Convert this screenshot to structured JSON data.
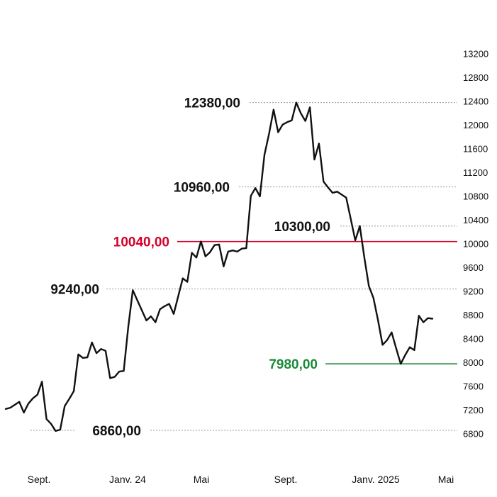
{
  "chart_data": {
    "type": "line",
    "title": "",
    "xlabel": "",
    "ylabel": "",
    "x_tick_labels": [
      "Sept.",
      "Janv. 24",
      "Mai",
      "Sept.",
      "Janv. 2025",
      "Mai"
    ],
    "y_ticks": [
      6800,
      7200,
      7600,
      8000,
      8400,
      8800,
      9200,
      9600,
      10000,
      10400,
      10800,
      11200,
      11600,
      12000,
      12400,
      12800,
      13200
    ],
    "ylim": [
      6800,
      13200
    ],
    "y_axis_side": "right",
    "grid": false,
    "series": [
      {
        "color": "#111111",
        "values": [
          7220,
          7240,
          7290,
          7340,
          7160,
          7310,
          7400,
          7460,
          7680,
          7050,
          6970,
          6850,
          6870,
          7270,
          7390,
          7520,
          8140,
          8080,
          8090,
          8340,
          8160,
          8230,
          8200,
          7740,
          7760,
          7850,
          7860,
          8600,
          9220,
          9050,
          8880,
          8710,
          8780,
          8680,
          8900,
          8950,
          8990,
          8820,
          9120,
          9420,
          9360,
          9850,
          9770,
          10040,
          9790,
          9860,
          9980,
          9990,
          9620,
          9870,
          9890,
          9870,
          9920,
          9930,
          10810,
          10940,
          10800,
          11500,
          11850,
          12260,
          11880,
          12010,
          12050,
          12080,
          12380,
          12200,
          12070,
          12300,
          11420,
          11690,
          11050,
          10950,
          10860,
          10880,
          10830,
          10780,
          10420,
          10060,
          10300,
          9770,
          9290,
          9090,
          8720,
          8300,
          8380,
          8510,
          8240,
          7980,
          8130,
          8260,
          8210,
          8790,
          8680,
          8750,
          8740
        ]
      }
    ],
    "annotations": [
      {
        "label": "12380,00",
        "value": 12380,
        "color": "#111111",
        "line": "dotted"
      },
      {
        "label": "10960,00",
        "value": 10960,
        "color": "#111111",
        "line": "dotted"
      },
      {
        "label": "10040,00",
        "value": 10040,
        "color": "#d4002a",
        "line": "solid"
      },
      {
        "label": "10300,00",
        "value": 10300,
        "color": "#111111",
        "line": "dotted"
      },
      {
        "label": "9240,00",
        "value": 9240,
        "color": "#111111",
        "line": "dotted"
      },
      {
        "label": "7980,00",
        "value": 7980,
        "color": "#1a8a38",
        "line": "solid"
      },
      {
        "label": "6860,00",
        "value": 6860,
        "color": "#111111",
        "line": "dotted"
      }
    ]
  }
}
